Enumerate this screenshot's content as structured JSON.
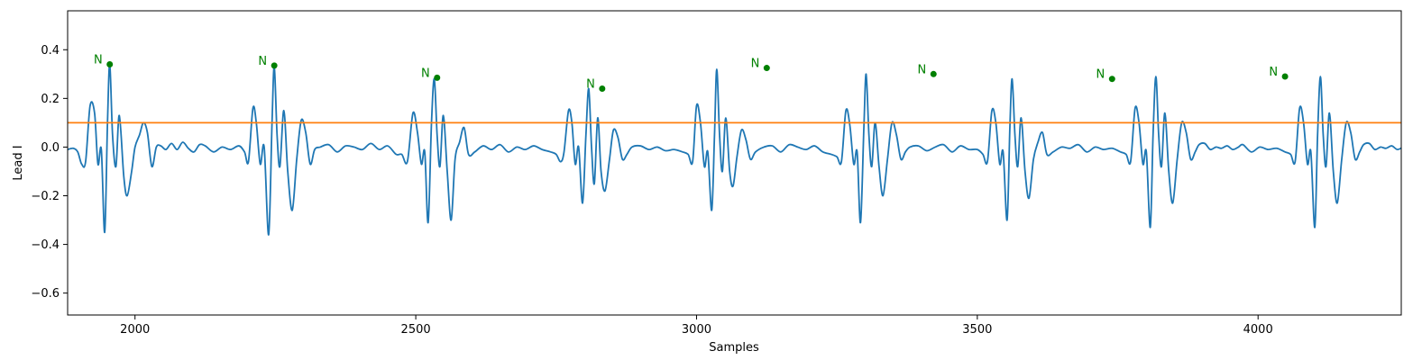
{
  "chart_data": {
    "type": "line",
    "title": "",
    "xlabel": "Samples",
    "ylabel": "Lead I",
    "xlim": [
      1880,
      4255
    ],
    "ylim": [
      -0.69,
      0.56
    ],
    "x_ticks": [
      2000,
      2500,
      3000,
      3500,
      4000
    ],
    "y_ticks": [
      -0.6,
      -0.4,
      -0.2,
      0.0,
      0.2,
      0.4
    ],
    "y_tick_labels": [
      "−0.6",
      "−0.4",
      "−0.2",
      "0.0",
      "0.2",
      "0.4"
    ],
    "grid": false,
    "signal_color": "#1f77b4",
    "threshold": {
      "value": 0.1,
      "color": "#ff7f0e"
    },
    "peak_color": "#008000",
    "baseline_points": [
      [
        1880,
        -0.01
      ],
      [
        1890,
        -0.005
      ],
      [
        1898,
        -0.02
      ],
      [
        1905,
        -0.07
      ],
      [
        1912,
        -0.06
      ],
      [
        1920,
        0.17
      ],
      [
        1928,
        0.14
      ],
      [
        1934,
        -0.07
      ],
      [
        1940,
        -0.01
      ],
      [
        1946,
        -0.35
      ],
      [
        1951,
        0.1
      ],
      [
        1955,
        0.34
      ],
      [
        1960,
        0.05
      ],
      [
        1966,
        -0.08
      ],
      [
        1972,
        0.13
      ],
      [
        1980,
        -0.12
      ],
      [
        1986,
        -0.2
      ],
      [
        1994,
        -0.1
      ],
      [
        2000,
        0.0
      ],
      [
        2008,
        0.05
      ],
      [
        2015,
        0.1
      ],
      [
        2022,
        0.06
      ],
      [
        2030,
        -0.08
      ],
      [
        2038,
        0.0
      ],
      [
        2046,
        0.005
      ],
      [
        2055,
        -0.01
      ],
      [
        2065,
        0.015
      ],
      [
        2075,
        -0.01
      ],
      [
        2085,
        0.02
      ],
      [
        2095,
        -0.005
      ],
      [
        2105,
        -0.02
      ],
      [
        2115,
        0.01
      ],
      [
        2125,
        0.005
      ],
      [
        2140,
        -0.02
      ],
      [
        2155,
        0.0
      ],
      [
        2170,
        -0.01
      ],
      [
        2185,
        0.005
      ],
      [
        2195,
        -0.02
      ],
      [
        2202,
        -0.06
      ],
      [
        2210,
        0.16
      ],
      [
        2216,
        0.1
      ],
      [
        2223,
        -0.07
      ],
      [
        2230,
        0.0
      ],
      [
        2238,
        -0.36
      ],
      [
        2244,
        0.1
      ],
      [
        2248,
        0.33
      ],
      [
        2253,
        0.05
      ],
      [
        2258,
        -0.08
      ],
      [
        2265,
        0.15
      ],
      [
        2272,
        -0.1
      ],
      [
        2280,
        -0.26
      ],
      [
        2288,
        -0.05
      ],
      [
        2296,
        0.11
      ],
      [
        2304,
        0.06
      ],
      [
        2312,
        -0.07
      ],
      [
        2320,
        -0.01
      ],
      [
        2330,
        0.0
      ],
      [
        2345,
        0.01
      ],
      [
        2360,
        -0.02
      ],
      [
        2375,
        0.005
      ],
      [
        2390,
        0.0
      ],
      [
        2405,
        -0.01
      ],
      [
        2420,
        0.015
      ],
      [
        2435,
        -0.01
      ],
      [
        2450,
        0.005
      ],
      [
        2465,
        -0.03
      ],
      [
        2475,
        -0.03
      ],
      [
        2485,
        -0.06
      ],
      [
        2495,
        0.14
      ],
      [
        2503,
        0.06
      ],
      [
        2510,
        -0.07
      ],
      [
        2516,
        -0.02
      ],
      [
        2522,
        -0.31
      ],
      [
        2528,
        0.1
      ],
      [
        2533,
        0.28
      ],
      [
        2538,
        0.05
      ],
      [
        2543,
        -0.08
      ],
      [
        2549,
        0.13
      ],
      [
        2556,
        -0.1
      ],
      [
        2563,
        -0.3
      ],
      [
        2570,
        -0.05
      ],
      [
        2578,
        0.02
      ],
      [
        2586,
        0.08
      ],
      [
        2594,
        -0.03
      ],
      [
        2605,
        -0.02
      ],
      [
        2620,
        0.005
      ],
      [
        2635,
        -0.01
      ],
      [
        2650,
        0.01
      ],
      [
        2665,
        -0.02
      ],
      [
        2680,
        0.0
      ],
      [
        2695,
        -0.01
      ],
      [
        2710,
        0.005
      ],
      [
        2725,
        -0.01
      ],
      [
        2740,
        -0.02
      ],
      [
        2750,
        -0.03
      ],
      [
        2758,
        -0.06
      ],
      [
        2764,
        -0.02
      ],
      [
        2772,
        0.15
      ],
      [
        2778,
        0.1
      ],
      [
        2784,
        -0.07
      ],
      [
        2790,
        0.0
      ],
      [
        2797,
        -0.23
      ],
      [
        2803,
        0.05
      ],
      [
        2808,
        0.24
      ],
      [
        2813,
        0.0
      ],
      [
        2818,
        -0.15
      ],
      [
        2824,
        0.12
      ],
      [
        2830,
        -0.1
      ],
      [
        2837,
        -0.18
      ],
      [
        2845,
        -0.05
      ],
      [
        2852,
        0.07
      ],
      [
        2860,
        0.04
      ],
      [
        2868,
        -0.05
      ],
      [
        2876,
        -0.03
      ],
      [
        2885,
        0.0
      ],
      [
        2900,
        0.005
      ],
      [
        2915,
        -0.01
      ],
      [
        2930,
        0.0
      ],
      [
        2945,
        -0.015
      ],
      [
        2960,
        -0.01
      ],
      [
        2975,
        -0.02
      ],
      [
        2985,
        -0.03
      ],
      [
        2993,
        -0.06
      ],
      [
        3000,
        0.17
      ],
      [
        3007,
        0.1
      ],
      [
        3014,
        -0.08
      ],
      [
        3020,
        -0.02
      ],
      [
        3027,
        -0.26
      ],
      [
        3032,
        0.05
      ],
      [
        3036,
        0.32
      ],
      [
        3041,
        0.05
      ],
      [
        3046,
        -0.1
      ],
      [
        3052,
        0.12
      ],
      [
        3059,
        -0.1
      ],
      [
        3065,
        -0.16
      ],
      [
        3072,
        -0.04
      ],
      [
        3080,
        0.07
      ],
      [
        3088,
        0.03
      ],
      [
        3096,
        -0.05
      ],
      [
        3105,
        -0.02
      ],
      [
        3120,
        0.0
      ],
      [
        3135,
        0.005
      ],
      [
        3150,
        -0.02
      ],
      [
        3165,
        0.01
      ],
      [
        3180,
        0.0
      ],
      [
        3195,
        -0.01
      ],
      [
        3210,
        0.005
      ],
      [
        3225,
        -0.02
      ],
      [
        3240,
        -0.03
      ],
      [
        3250,
        -0.04
      ],
      [
        3258,
        -0.06
      ],
      [
        3266,
        0.15
      ],
      [
        3273,
        0.09
      ],
      [
        3280,
        -0.07
      ],
      [
        3286,
        -0.02
      ],
      [
        3292,
        -0.31
      ],
      [
        3298,
        0.08
      ],
      [
        3302,
        0.3
      ],
      [
        3307,
        0.05
      ],
      [
        3312,
        -0.08
      ],
      [
        3318,
        0.1
      ],
      [
        3325,
        -0.08
      ],
      [
        3332,
        -0.2
      ],
      [
        3340,
        -0.05
      ],
      [
        3348,
        0.1
      ],
      [
        3356,
        0.05
      ],
      [
        3364,
        -0.05
      ],
      [
        3372,
        -0.02
      ],
      [
        3380,
        0.0
      ],
      [
        3395,
        0.005
      ],
      [
        3410,
        -0.015
      ],
      [
        3425,
        0.0
      ],
      [
        3440,
        0.01
      ],
      [
        3455,
        -0.02
      ],
      [
        3470,
        0.005
      ],
      [
        3485,
        -0.01
      ],
      [
        3500,
        -0.01
      ],
      [
        3510,
        -0.03
      ],
      [
        3518,
        -0.06
      ],
      [
        3526,
        0.15
      ],
      [
        3533,
        0.1
      ],
      [
        3540,
        -0.07
      ],
      [
        3546,
        -0.02
      ],
      [
        3553,
        -0.3
      ],
      [
        3558,
        0.08
      ],
      [
        3562,
        0.28
      ],
      [
        3567,
        0.05
      ],
      [
        3572,
        -0.08
      ],
      [
        3578,
        0.12
      ],
      [
        3585,
        -0.1
      ],
      [
        3592,
        -0.21
      ],
      [
        3600,
        -0.05
      ],
      [
        3608,
        0.02
      ],
      [
        3616,
        0.06
      ],
      [
        3624,
        -0.03
      ],
      [
        3635,
        -0.02
      ],
      [
        3650,
        0.0
      ],
      [
        3665,
        -0.005
      ],
      [
        3680,
        0.01
      ],
      [
        3695,
        -0.02
      ],
      [
        3710,
        0.0
      ],
      [
        3725,
        -0.01
      ],
      [
        3740,
        -0.005
      ],
      [
        3755,
        -0.02
      ],
      [
        3765,
        -0.03
      ],
      [
        3773,
        -0.06
      ],
      [
        3781,
        0.16
      ],
      [
        3788,
        0.1
      ],
      [
        3795,
        -0.07
      ],
      [
        3801,
        -0.02
      ],
      [
        3808,
        -0.33
      ],
      [
        3813,
        0.05
      ],
      [
        3818,
        0.29
      ],
      [
        3823,
        0.05
      ],
      [
        3828,
        -0.08
      ],
      [
        3834,
        0.14
      ],
      [
        3841,
        -0.1
      ],
      [
        3848,
        -0.23
      ],
      [
        3856,
        -0.05
      ],
      [
        3864,
        0.1
      ],
      [
        3872,
        0.06
      ],
      [
        3880,
        -0.05
      ],
      [
        3888,
        -0.02
      ],
      [
        3895,
        0.01
      ],
      [
        3905,
        0.015
      ],
      [
        3915,
        -0.01
      ],
      [
        3925,
        0.0
      ],
      [
        3935,
        -0.005
      ],
      [
        3945,
        0.005
      ],
      [
        3955,
        -0.01
      ],
      [
        3965,
        0.0
      ]
    ],
    "peaks": [
      {
        "x": 1955,
        "y": 0.34,
        "label": "N"
      },
      {
        "x": 2248,
        "y": 0.335,
        "label": "N"
      },
      {
        "x": 2538,
        "y": 0.285,
        "label": "N"
      },
      {
        "x": 2832,
        "y": 0.24,
        "label": "N"
      },
      {
        "x": 3125,
        "y": 0.325,
        "label": "N"
      },
      {
        "x": 3422,
        "y": 0.3,
        "label": "N"
      },
      {
        "x": 3740,
        "y": 0.28,
        "label": "N"
      },
      {
        "x": 4048,
        "y": 0.29,
        "label": "N"
      }
    ]
  }
}
